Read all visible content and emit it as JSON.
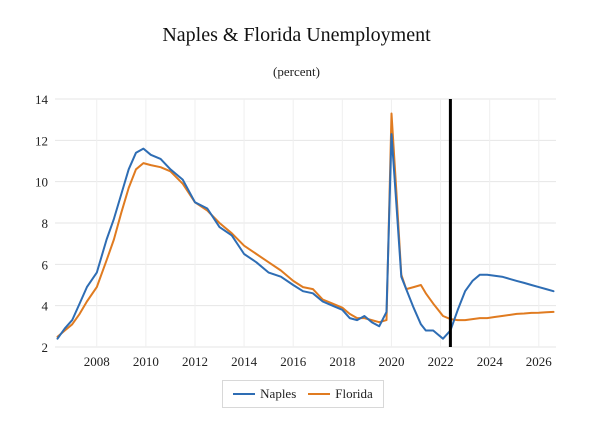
{
  "chart_data": {
    "type": "line",
    "title": "Naples & Florida Unemployment",
    "subtitle": "(percent)",
    "xlabel": "",
    "ylabel": "",
    "xlim": [
      2006.3,
      2026.7
    ],
    "ylim": [
      2,
      14
    ],
    "yticks": [
      2,
      4,
      6,
      8,
      10,
      12,
      14
    ],
    "xticks": [
      2008,
      2010,
      2012,
      2014,
      2016,
      2018,
      2020,
      2022,
      2024,
      2026
    ],
    "vline_x": 2022.4,
    "grid": true,
    "legend_position": "bottom",
    "series": [
      {
        "name": "Naples",
        "color": "#2e6db4",
        "x": [
          2006.4,
          2006.7,
          2007.0,
          2007.3,
          2007.6,
          2008.0,
          2008.4,
          2008.7,
          2009.0,
          2009.3,
          2009.6,
          2009.9,
          2010.2,
          2010.6,
          2011.0,
          2011.5,
          2012.0,
          2012.5,
          2013.0,
          2013.5,
          2014.0,
          2014.5,
          2015.0,
          2015.5,
          2016.0,
          2016.4,
          2016.8,
          2017.2,
          2017.6,
          2018.0,
          2018.3,
          2018.6,
          2018.9,
          2019.2,
          2019.5,
          2019.8,
          2020.0,
          2020.2,
          2020.4,
          2020.6,
          2020.9,
          2021.2,
          2021.4,
          2021.7,
          2021.9,
          2022.1,
          2022.4,
          2022.7,
          2023.0,
          2023.3,
          2023.6,
          2023.9,
          2024.2,
          2024.5,
          2024.8,
          2025.1,
          2025.4,
          2025.7,
          2026.0,
          2026.3,
          2026.6
        ],
        "values": [
          2.4,
          2.9,
          3.3,
          4.1,
          4.9,
          5.6,
          7.2,
          8.2,
          9.4,
          10.6,
          11.4,
          11.6,
          11.3,
          11.1,
          10.6,
          10.1,
          9.0,
          8.7,
          7.8,
          7.4,
          6.5,
          6.1,
          5.6,
          5.4,
          5.0,
          4.7,
          4.6,
          4.2,
          4.0,
          3.8,
          3.4,
          3.3,
          3.5,
          3.2,
          3.0,
          3.7,
          12.3,
          8.9,
          5.4,
          4.8,
          3.9,
          3.1,
          2.8,
          2.8,
          2.6,
          2.4,
          2.8,
          3.8,
          4.7,
          5.2,
          5.5,
          5.5,
          5.45,
          5.4,
          5.3,
          5.2,
          5.1,
          5.0,
          4.9,
          4.8,
          4.7
        ]
      },
      {
        "name": "Florida",
        "color": "#e07b20",
        "x": [
          2006.4,
          2006.7,
          2007.0,
          2007.3,
          2007.6,
          2008.0,
          2008.4,
          2008.7,
          2009.0,
          2009.3,
          2009.6,
          2009.9,
          2010.2,
          2010.6,
          2011.0,
          2011.5,
          2012.0,
          2012.5,
          2013.0,
          2013.5,
          2014.0,
          2014.5,
          2015.0,
          2015.5,
          2016.0,
          2016.4,
          2016.8,
          2017.2,
          2017.6,
          2018.0,
          2018.3,
          2018.6,
          2018.9,
          2019.2,
          2019.5,
          2019.8,
          2020.0,
          2020.2,
          2020.4,
          2020.6,
          2020.9,
          2021.2,
          2021.4,
          2021.7,
          2021.9,
          2022.1,
          2022.4,
          2022.7,
          2023.0,
          2023.3,
          2023.6,
          2023.9,
          2024.2,
          2024.5,
          2024.8,
          2025.1,
          2025.4,
          2025.7,
          2026.0,
          2026.3,
          2026.6
        ],
        "values": [
          2.5,
          2.8,
          3.1,
          3.6,
          4.2,
          4.9,
          6.2,
          7.2,
          8.5,
          9.7,
          10.6,
          10.9,
          10.8,
          10.7,
          10.5,
          9.9,
          9.0,
          8.6,
          8.0,
          7.5,
          6.9,
          6.5,
          6.1,
          5.7,
          5.2,
          4.9,
          4.8,
          4.3,
          4.1,
          3.9,
          3.6,
          3.4,
          3.4,
          3.3,
          3.2,
          3.3,
          13.3,
          9.5,
          5.5,
          4.8,
          4.9,
          5.0,
          4.6,
          4.1,
          3.8,
          3.5,
          3.35,
          3.3,
          3.3,
          3.35,
          3.4,
          3.4,
          3.45,
          3.5,
          3.55,
          3.6,
          3.62,
          3.65,
          3.66,
          3.68,
          3.7
        ]
      }
    ]
  },
  "legend": {
    "items": [
      {
        "label": "Naples",
        "color": "#2e6db4"
      },
      {
        "label": "Florida",
        "color": "#e07b20"
      }
    ]
  }
}
